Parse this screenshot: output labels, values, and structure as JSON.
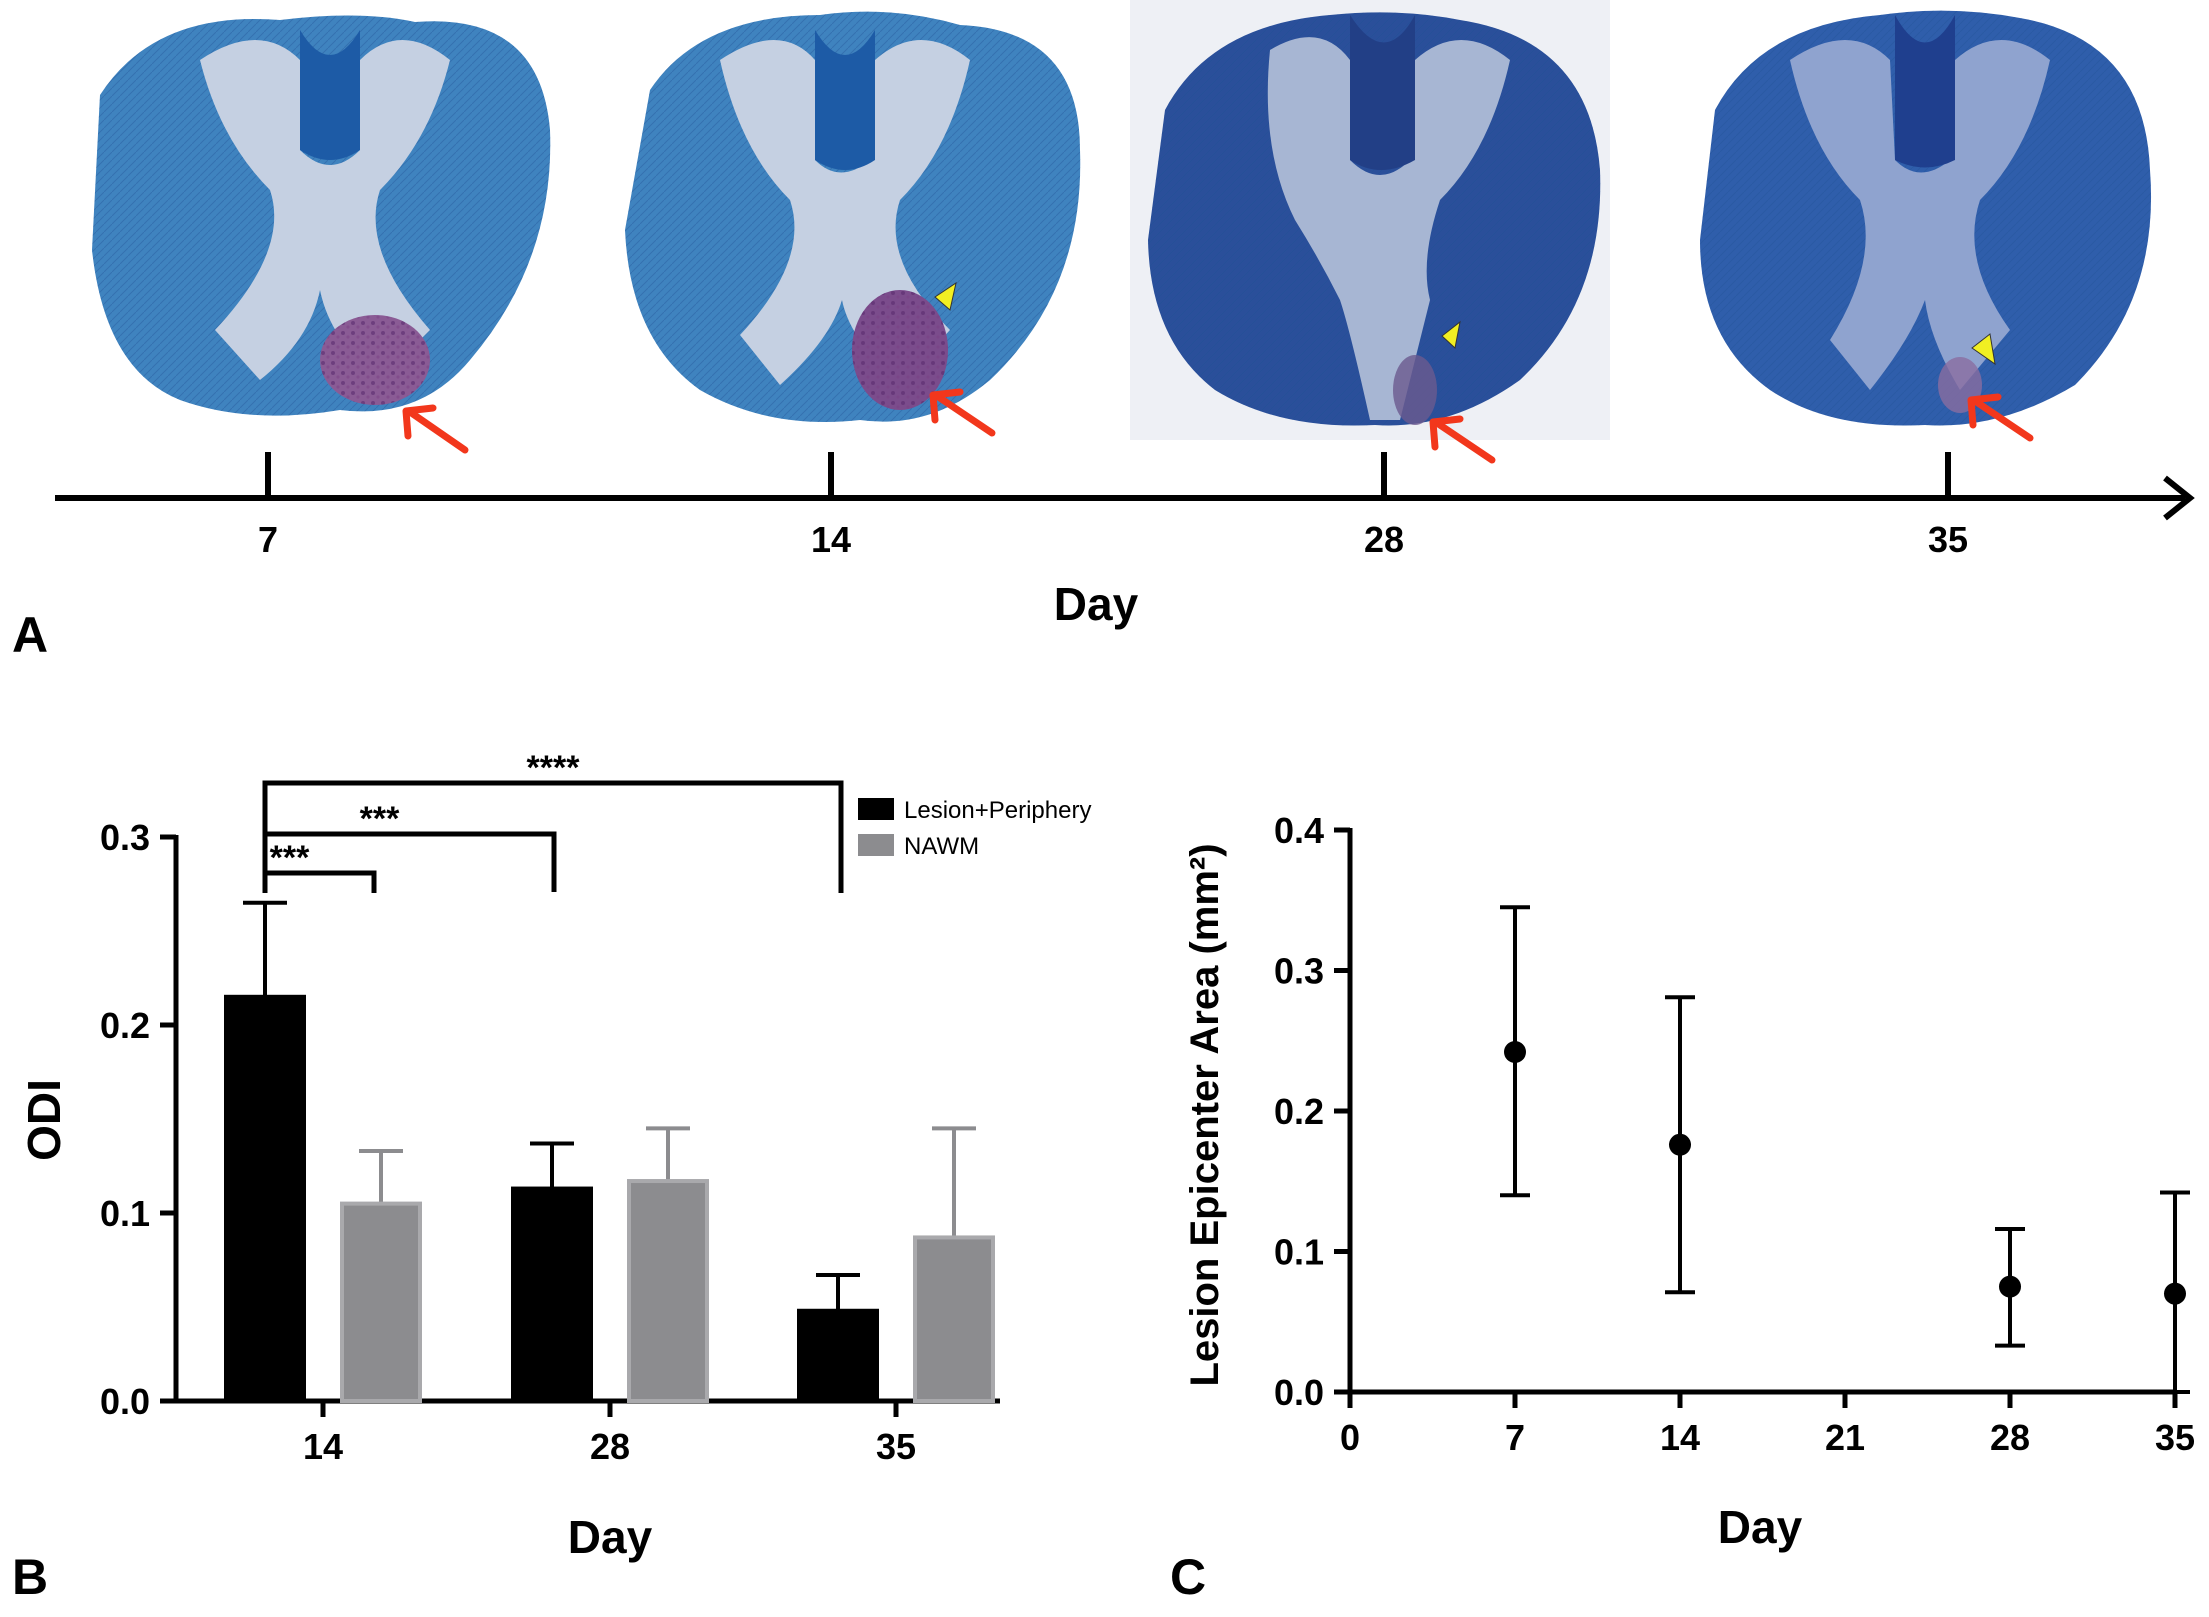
{
  "panels": {
    "a": {
      "letter": "A",
      "axis_label": "Day",
      "ticks": [
        "7",
        "14",
        "28",
        "35"
      ],
      "images": [
        {
          "day": "7",
          "description": "spinal-cord-section-day-7"
        },
        {
          "day": "14",
          "description": "spinal-cord-section-day-14"
        },
        {
          "day": "28",
          "description": "spinal-cord-section-day-28"
        },
        {
          "day": "35",
          "description": "spinal-cord-section-day-35"
        }
      ]
    },
    "b": {
      "letter": "B"
    },
    "c": {
      "letter": "C"
    }
  },
  "colors": {
    "lesion": "#000000",
    "nawm": "#8c8c8f",
    "section_dark": "#2b4f9c",
    "section_light": "#3f7fc0",
    "gray_matter": "#b9c7dd",
    "red_arrow": "#f2371c",
    "yellow_arrowhead": "#f1ef22"
  },
  "chart_data": [
    {
      "type": "bar",
      "id": "B",
      "categories": [
        "14",
        "28",
        "35"
      ],
      "series": [
        {
          "name": "Lesion+Periphery",
          "values": [
            0.215,
            0.113,
            0.048
          ],
          "errors": [
            0.05,
            0.024,
            0.019
          ]
        },
        {
          "name": "NAWM",
          "values": [
            0.105,
            0.117,
            0.087
          ],
          "errors": [
            0.028,
            0.028,
            0.058
          ]
        }
      ],
      "xlabel": "Day",
      "ylabel": "ODI",
      "ylim": [
        0,
        0.3
      ],
      "yticks": [
        "0.0",
        "0.1",
        "0.2",
        "0.3"
      ],
      "legend": "top-right",
      "significance": [
        {
          "label": "***",
          "from": "14",
          "to": "14 NAWM"
        },
        {
          "label": "***",
          "from": "14",
          "to": "28"
        },
        {
          "label": "****",
          "from": "14",
          "to": "35"
        }
      ]
    },
    {
      "type": "scatter",
      "id": "C",
      "x": [
        7,
        14,
        28,
        35
      ],
      "y": [
        0.242,
        0.176,
        0.075,
        0.07
      ],
      "err_low": [
        0.14,
        0.071,
        0.033,
        0.0
      ],
      "err_high": [
        0.345,
        0.281,
        0.116,
        0.142
      ],
      "xlabel": "Day",
      "ylabel": "Lesion Epicenter Area (mm²)",
      "xlim": [
        0,
        35
      ],
      "ylim": [
        0,
        0.4
      ],
      "xticks": [
        "0",
        "7",
        "14",
        "21",
        "28",
        "35"
      ],
      "yticks": [
        "0.0",
        "0.1",
        "0.2",
        "0.3",
        "0.4"
      ]
    }
  ]
}
